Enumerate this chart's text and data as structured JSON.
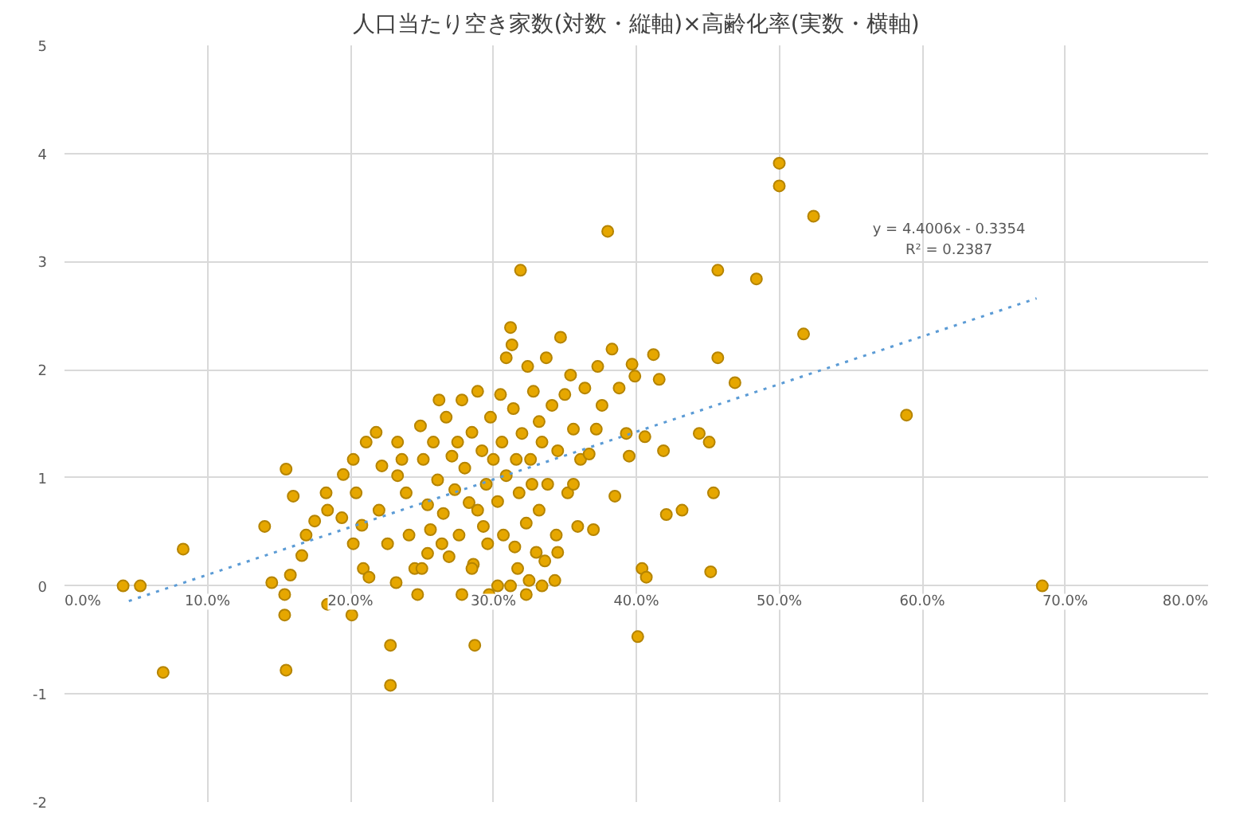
{
  "chart_data": {
    "type": "scatter",
    "title": "人口当たり空き家数(対数・縦軸)×高齢化率(実数・横軸)",
    "xlim": [
      0,
      0.8
    ],
    "ylim": [
      -2,
      5
    ],
    "xticks": [
      {
        "value": 0,
        "label": "0.0%"
      },
      {
        "value": 0.1,
        "label": "10.0%"
      },
      {
        "value": 0.2,
        "label": "20.0%"
      },
      {
        "value": 0.3,
        "label": "30.0%"
      },
      {
        "value": 0.4,
        "label": "40.0%"
      },
      {
        "value": 0.5,
        "label": "50.0%"
      },
      {
        "value": 0.6,
        "label": "60.0%"
      },
      {
        "value": 0.7,
        "label": "70.0%"
      },
      {
        "value": 0.8,
        "label": "80.0%"
      }
    ],
    "yticks": [
      -2,
      -1,
      0,
      1,
      2,
      3,
      4,
      5
    ],
    "grid": true,
    "annotations": [
      "y = 4.4006x - 0.3354",
      "R² = 0.2387"
    ],
    "series": [
      {
        "marker": "circle",
        "color": "#e6a700",
        "x": [
          0.041,
          0.053,
          0.083,
          0.069,
          0.14,
          0.155,
          0.16,
          0.145,
          0.154,
          0.158,
          0.155,
          0.154,
          0.166,
          0.169,
          0.175,
          0.183,
          0.184,
          0.184,
          0.194,
          0.195,
          0.202,
          0.204,
          0.208,
          0.201,
          0.209,
          0.211,
          0.218,
          0.222,
          0.22,
          0.226,
          0.228,
          0.228,
          0.232,
          0.233,
          0.236,
          0.239,
          0.241,
          0.245,
          0.247,
          0.249,
          0.251,
          0.254,
          0.256,
          0.254,
          0.258,
          0.261,
          0.265,
          0.267,
          0.269,
          0.271,
          0.273,
          0.276,
          0.278,
          0.28,
          0.283,
          0.285,
          0.286,
          0.287,
          0.289,
          0.292,
          0.293,
          0.295,
          0.296,
          0.297,
          0.298,
          0.3,
          0.303,
          0.305,
          0.306,
          0.307,
          0.309,
          0.309,
          0.312,
          0.313,
          0.314,
          0.316,
          0.315,
          0.317,
          0.318,
          0.319,
          0.32,
          0.323,
          0.324,
          0.325,
          0.326,
          0.327,
          0.328,
          0.33,
          0.332,
          0.332,
          0.334,
          0.336,
          0.337,
          0.338,
          0.341,
          0.343,
          0.344,
          0.345,
          0.347,
          0.35,
          0.352,
          0.354,
          0.356,
          0.359,
          0.361,
          0.364,
          0.367,
          0.37,
          0.373,
          0.376,
          0.38,
          0.383,
          0.385,
          0.388,
          0.393,
          0.395,
          0.397,
          0.399,
          0.401,
          0.404,
          0.407,
          0.406,
          0.412,
          0.416,
          0.419,
          0.421,
          0.432,
          0.444,
          0.451,
          0.454,
          0.452,
          0.457,
          0.457,
          0.469,
          0.484,
          0.5,
          0.5,
          0.524,
          0.517,
          0.589,
          0.684,
          0.262,
          0.275,
          0.289,
          0.278,
          0.264,
          0.312,
          0.323,
          0.345,
          0.334,
          0.25,
          0.202,
          0.213,
          0.233,
          0.356,
          0.372,
          0.285,
          0.303
        ],
        "values": [
          0,
          0,
          0.34,
          -0.8,
          0.55,
          1.08,
          0.83,
          0.03,
          -0.08,
          0.1,
          -0.78,
          -0.27,
          0.28,
          0.47,
          0.6,
          0.86,
          0.7,
          -0.17,
          0.63,
          1.03,
          1.17,
          0.86,
          0.56,
          -0.27,
          0.16,
          1.33,
          1.42,
          1.11,
          0.7,
          0.39,
          -0.55,
          -0.92,
          0.03,
          1.33,
          1.17,
          0.86,
          0.47,
          0.16,
          -0.08,
          1.48,
          1.17,
          0.75,
          0.52,
          0.3,
          1.33,
          0.98,
          0.67,
          1.56,
          0.27,
          1.2,
          0.89,
          0.47,
          1.72,
          1.09,
          0.77,
          1.42,
          0.2,
          -0.55,
          1.8,
          1.25,
          0.55,
          0.94,
          0.39,
          -0.08,
          1.56,
          1.17,
          0.78,
          1.77,
          1.33,
          0.47,
          1.02,
          2.11,
          2.39,
          2.23,
          1.64,
          1.17,
          0.36,
          0.16,
          0.86,
          2.92,
          1.41,
          0.58,
          2.03,
          0.05,
          1.17,
          0.94,
          1.8,
          0.31,
          1.52,
          0.7,
          1.33,
          0.23,
          2.11,
          0.94,
          1.67,
          0.05,
          0.47,
          1.25,
          2.3,
          1.77,
          0.86,
          1.95,
          1.45,
          0.55,
          1.17,
          1.83,
          1.22,
          0.52,
          2.03,
          1.67,
          3.28,
          2.19,
          0.83,
          1.83,
          1.41,
          1.2,
          2.05,
          1.94,
          -0.47,
          0.16,
          0.08,
          1.38,
          2.14,
          1.91,
          1.25,
          0.66,
          0.7,
          1.41,
          1.33,
          0.86,
          0.13,
          2.92,
          2.11,
          1.88,
          2.84,
          3.91,
          3.7,
          3.42,
          2.33,
          1.58,
          0,
          1.72,
          1.33,
          0.7,
          -0.08,
          0.39,
          0,
          -0.08,
          0.31,
          0,
          0.16,
          0.39,
          0.08,
          1.02,
          0.94,
          1.45,
          0.16,
          0
        ]
      },
      {
        "type": "line",
        "color": "#5b9bd5",
        "line_style": "dotted",
        "x": [
          0.045,
          0.68
        ],
        "values": [
          -0.14,
          2.66
        ]
      }
    ]
  }
}
